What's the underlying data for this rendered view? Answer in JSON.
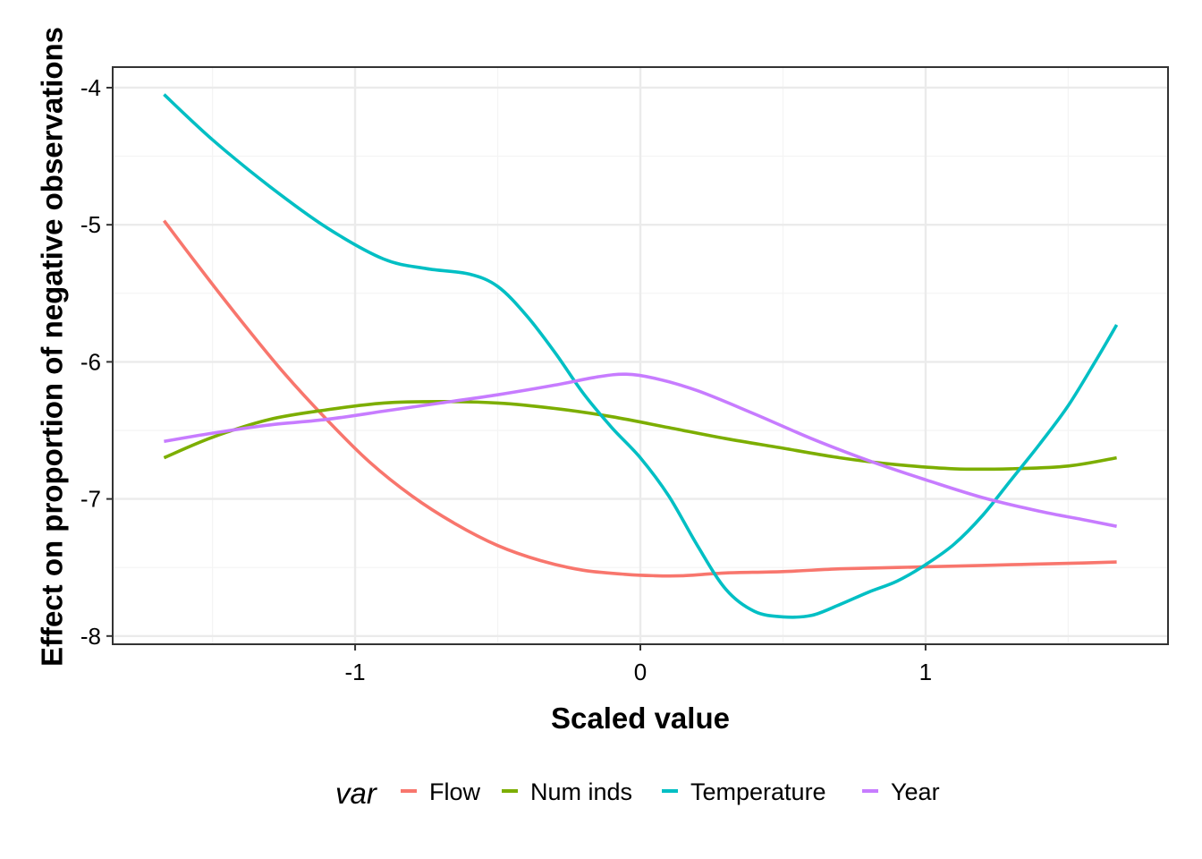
{
  "chart_data": {
    "type": "line",
    "xlabel": "Scaled value",
    "ylabel": "Effect on proportion of negative observations",
    "xlim": [
      -1.85,
      1.85
    ],
    "ylim": [
      -8.06,
      -3.85
    ],
    "xticks": [
      -1,
      0,
      1
    ],
    "xtick_labels": [
      "-1",
      "0",
      "1"
    ],
    "yticks": [
      -4,
      -5,
      -6,
      -7,
      -8
    ],
    "ytick_labels": [
      "-4",
      "-5",
      "-6",
      "-7",
      "-8"
    ],
    "grid": true,
    "legend": {
      "title": "var",
      "position": "bottom"
    },
    "series": [
      {
        "name": "Flow",
        "color": "#F8766D",
        "x": [
          -1.67,
          -1.55,
          -1.4,
          -1.25,
          -1.1,
          -0.95,
          -0.8,
          -0.65,
          -0.5,
          -0.35,
          -0.2,
          -0.05,
          0.05,
          0.15,
          0.3,
          0.5,
          0.7,
          0.9,
          1.1,
          1.3,
          1.5,
          1.67
        ],
        "y": [
          -4.97,
          -5.3,
          -5.7,
          -6.08,
          -6.42,
          -6.73,
          -6.98,
          -7.18,
          -7.34,
          -7.45,
          -7.52,
          -7.55,
          -7.56,
          -7.56,
          -7.54,
          -7.53,
          -7.51,
          -7.5,
          -7.49,
          -7.48,
          -7.47,
          -7.46
        ]
      },
      {
        "name": "Num inds",
        "color": "#7CAE00",
        "x": [
          -1.67,
          -1.5,
          -1.3,
          -1.1,
          -0.9,
          -0.7,
          -0.5,
          -0.3,
          -0.1,
          0.1,
          0.3,
          0.5,
          0.7,
          0.9,
          1.1,
          1.3,
          1.5,
          1.67
        ],
        "y": [
          -6.7,
          -6.55,
          -6.42,
          -6.35,
          -6.3,
          -6.29,
          -6.3,
          -6.34,
          -6.4,
          -6.48,
          -6.56,
          -6.63,
          -6.7,
          -6.75,
          -6.78,
          -6.78,
          -6.76,
          -6.7
        ]
      },
      {
        "name": "Temperature",
        "color": "#00BFC4",
        "x": [
          -1.67,
          -1.5,
          -1.3,
          -1.1,
          -0.9,
          -0.75,
          -0.6,
          -0.5,
          -0.4,
          -0.3,
          -0.2,
          -0.1,
          0.0,
          0.1,
          0.2,
          0.3,
          0.4,
          0.5,
          0.6,
          0.7,
          0.8,
          0.9,
          1.0,
          1.1,
          1.2,
          1.3,
          1.4,
          1.5,
          1.6,
          1.67
        ],
        "y": [
          -4.05,
          -4.38,
          -4.72,
          -5.02,
          -5.25,
          -5.32,
          -5.36,
          -5.45,
          -5.66,
          -5.93,
          -6.23,
          -6.48,
          -6.7,
          -6.98,
          -7.34,
          -7.66,
          -7.82,
          -7.86,
          -7.85,
          -7.77,
          -7.68,
          -7.6,
          -7.48,
          -7.33,
          -7.12,
          -6.86,
          -6.6,
          -6.32,
          -5.98,
          -5.73
        ]
      },
      {
        "name": "Year",
        "color": "#C77CFF",
        "x": [
          -1.67,
          -1.5,
          -1.3,
          -1.1,
          -0.9,
          -0.7,
          -0.5,
          -0.3,
          -0.15,
          -0.05,
          0.05,
          0.2,
          0.4,
          0.6,
          0.8,
          1.0,
          1.2,
          1.4,
          1.55,
          1.67
        ],
        "y": [
          -6.58,
          -6.52,
          -6.46,
          -6.42,
          -6.36,
          -6.3,
          -6.24,
          -6.17,
          -6.11,
          -6.09,
          -6.12,
          -6.21,
          -6.38,
          -6.56,
          -6.72,
          -6.86,
          -6.99,
          -7.09,
          -7.15,
          -7.2
        ]
      }
    ]
  }
}
